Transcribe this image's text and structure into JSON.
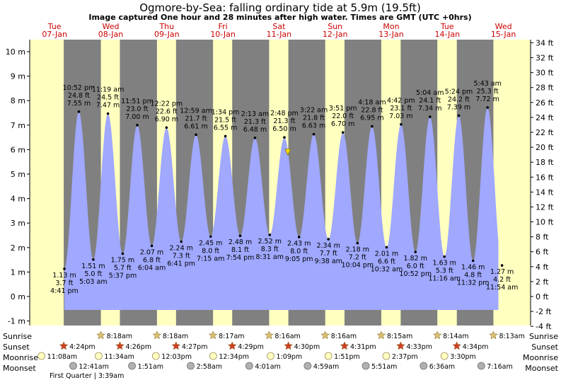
{
  "header": {
    "title": "Ogmore-by-Sea: falling  ordinary tide at 5.9m (19.5ft)",
    "subtitle": "Image captured One hour and 28 minutes after high water. Times are GMT (UTC +0hrs)"
  },
  "colors": {
    "day": "#ffffc0",
    "night": "#808080",
    "tide": "#a0a8ff",
    "sun_star": "#d8c070",
    "sunset_star": "#d04020",
    "moonrise": "#ffffc0",
    "moonset": "#b0b0b0",
    "day_label": "#cc0000",
    "marker": "#ffe000"
  },
  "chart_data": {
    "type": "area",
    "title": "Ogmore-by-Sea: falling  ordinary tide at 5.9m (19.5ft)",
    "ylabel_left": "m",
    "ylabel_right": "ft",
    "ylim_m": [
      -1.5,
      10.8
    ],
    "left_ticks": [
      "-1 m",
      "0 m",
      "1 m",
      "2 m",
      "3 m",
      "4 m",
      "5 m",
      "6 m",
      "7 m",
      "8 m",
      "9 m",
      "10 m"
    ],
    "right_ticks": [
      "-4 ft",
      "-2 ft",
      "0 ft",
      "2 ft",
      "4 ft",
      "6 ft",
      "8 ft",
      "10 ft",
      "12 ft",
      "14 ft",
      "16 ft",
      "18 ft",
      "20 ft",
      "22 ft",
      "24 ft",
      "26 ft",
      "28 ft",
      "30 ft",
      "32 ft",
      "34 ft"
    ],
    "day_labels": [
      {
        "name": "Tue",
        "date": "07-Jan"
      },
      {
        "name": "Wed",
        "date": "08-Jan"
      },
      {
        "name": "Thu",
        "date": "09-Jan"
      },
      {
        "name": "Fri",
        "date": "10-Jan"
      },
      {
        "name": "Sat",
        "date": "11-Jan"
      },
      {
        "name": "Sun",
        "date": "12-Jan"
      },
      {
        "name": "Mon",
        "date": "13-Jan"
      },
      {
        "name": "Tue",
        "date": "14-Jan"
      },
      {
        "name": "Wed",
        "date": "15-Jan"
      }
    ],
    "tides": [
      {
        "type": "low",
        "time": "4:41 pm",
        "ft": "3.7 ft",
        "m": "1.13 m",
        "day": 0,
        "hour": 16.68,
        "h": 1.13
      },
      {
        "type": "high",
        "time": "10:52 pm",
        "ft": "24.8 ft",
        "m": "7.55 m",
        "day": 0,
        "hour": 22.87,
        "h": 7.55
      },
      {
        "type": "low",
        "time": "5:03 am",
        "ft": "5.0 ft",
        "m": "1.51 m",
        "day": 1,
        "hour": 5.05,
        "h": 1.51
      },
      {
        "type": "high",
        "time": "11:19 am",
        "ft": "24.5 ft",
        "m": "7.47 m",
        "day": 1,
        "hour": 11.32,
        "h": 7.47
      },
      {
        "type": "low",
        "time": "5:37 pm",
        "ft": "5.7 ft",
        "m": "1.75 m",
        "day": 1,
        "hour": 17.62,
        "h": 1.75
      },
      {
        "type": "high",
        "time": "11:51 pm",
        "ft": "23.0 ft",
        "m": "7.00 m",
        "day": 1,
        "hour": 23.85,
        "h": 7.0
      },
      {
        "type": "low",
        "time": "6:04 am",
        "ft": "6.8 ft",
        "m": "2.07 m",
        "day": 2,
        "hour": 6.07,
        "h": 2.07
      },
      {
        "type": "high",
        "time": "12:22 pm",
        "ft": "22.6 ft",
        "m": "6.90 m",
        "day": 2,
        "hour": 12.37,
        "h": 6.9
      },
      {
        "type": "low",
        "time": "6:41 pm",
        "ft": "7.3 ft",
        "m": "2.24 m",
        "day": 2,
        "hour": 18.68,
        "h": 2.24
      },
      {
        "type": "high",
        "time": "12:59 am",
        "ft": "21.7 ft",
        "m": "6.61 m",
        "day": 3,
        "hour": 0.98,
        "h": 6.61
      },
      {
        "type": "low",
        "time": "7:15 am",
        "ft": "8.0 ft",
        "m": "2.45 m",
        "day": 3,
        "hour": 7.25,
        "h": 2.45
      },
      {
        "type": "high",
        "time": "1:34 pm",
        "ft": "21.5 ft",
        "m": "6.55 m",
        "day": 3,
        "hour": 13.57,
        "h": 6.55
      },
      {
        "type": "low",
        "time": "7:54 pm",
        "ft": "8.1 ft",
        "m": "2.48 m",
        "day": 3,
        "hour": 19.9,
        "h": 2.48
      },
      {
        "type": "high",
        "time": "2:13 am",
        "ft": "21.3 ft",
        "m": "6.48 m",
        "day": 4,
        "hour": 2.22,
        "h": 6.48
      },
      {
        "type": "low",
        "time": "8:31 am",
        "ft": "8.3 ft",
        "m": "2.52 m",
        "day": 4,
        "hour": 8.52,
        "h": 2.52
      },
      {
        "type": "high",
        "time": "2:48 pm",
        "ft": "21.3 ft",
        "m": "6.50 m",
        "day": 4,
        "hour": 14.8,
        "h": 6.5
      },
      {
        "type": "low",
        "time": "9:05 pm",
        "ft": "8.0 ft",
        "m": "2.43 m",
        "day": 4,
        "hour": 21.08,
        "h": 2.43
      },
      {
        "type": "high",
        "time": "3:22 am",
        "ft": "21.8 ft",
        "m": "6.63 m",
        "day": 5,
        "hour": 3.37,
        "h": 6.63
      },
      {
        "type": "low",
        "time": "9:38 am",
        "ft": "7.7 ft",
        "m": "2.34 m",
        "day": 5,
        "hour": 9.63,
        "h": 2.34
      },
      {
        "type": "high",
        "time": "3:51 pm",
        "ft": "22.0 ft",
        "m": "6.70 m",
        "day": 5,
        "hour": 15.85,
        "h": 6.7
      },
      {
        "type": "low",
        "time": "10:04 pm",
        "ft": "7.2 ft",
        "m": "2.18 m",
        "day": 5,
        "hour": 22.07,
        "h": 2.18
      },
      {
        "type": "high",
        "time": "4:18 am",
        "ft": "22.8 ft",
        "m": "6.95 m",
        "day": 6,
        "hour": 4.3,
        "h": 6.95
      },
      {
        "type": "low",
        "time": "10:32 am",
        "ft": "6.6 ft",
        "m": "2.01 m",
        "day": 6,
        "hour": 10.53,
        "h": 2.01
      },
      {
        "type": "high",
        "time": "4:42 pm",
        "ft": "23.1 ft",
        "m": "7.03 m",
        "day": 6,
        "hour": 16.7,
        "h": 7.03
      },
      {
        "type": "low",
        "time": "10:52 pm",
        "ft": "6.0 ft",
        "m": "1.82 m",
        "day": 6,
        "hour": 22.87,
        "h": 1.82
      },
      {
        "type": "high",
        "time": "5:04 am",
        "ft": "24.1 ft",
        "m": "7.34 m",
        "day": 7,
        "hour": 5.07,
        "h": 7.34
      },
      {
        "type": "low",
        "time": "11:16 am",
        "ft": "5.3 ft",
        "m": "1.63 m",
        "day": 7,
        "hour": 11.27,
        "h": 1.63
      },
      {
        "type": "high",
        "time": "5:24 pm",
        "ft": "24.2 ft",
        "m": "7.39 m",
        "day": 7,
        "hour": 17.4,
        "h": 7.39
      },
      {
        "type": "low",
        "time": "11:32 pm",
        "ft": "4.8 ft",
        "m": "1.46 m",
        "day": 7,
        "hour": 23.53,
        "h": 1.46
      },
      {
        "type": "high",
        "time": "5:43 am",
        "ft": "25.3 ft",
        "m": "7.72 m",
        "day": 8,
        "hour": 5.72,
        "h": 7.72
      },
      {
        "type": "low",
        "time": "11:54 am",
        "ft": "4.2 ft",
        "m": "1.27 m",
        "day": 8,
        "hour": 11.9,
        "h": 1.27
      }
    ],
    "current": {
      "level_m": 5.9,
      "day": 4,
      "hour": 16.27
    },
    "sun": {
      "sunrise": [
        null,
        "8:18am",
        "8:18am",
        "8:17am",
        "8:16am",
        "8:16am",
        "8:15am",
        "8:14am",
        "8:13am"
      ],
      "sunset": [
        "4:24pm",
        "4:26pm",
        "4:27pm",
        "4:29pm",
        "4:30pm",
        "4:31pm",
        "4:33pm",
        "4:34pm",
        null
      ],
      "sunrise_hours": [
        null,
        8.3,
        8.3,
        8.28,
        8.27,
        8.27,
        8.25,
        8.23,
        8.22
      ],
      "sunset_hours": [
        16.4,
        16.43,
        16.45,
        16.48,
        16.5,
        16.52,
        16.55,
        16.57,
        null
      ]
    },
    "moon": {
      "moonrise": [
        "11:08am",
        "11:34am",
        "12:03pm",
        "12:34pm",
        "1:09pm",
        "1:51pm",
        "2:37pm",
        "3:30pm"
      ],
      "moonrise_hours": [
        11.13,
        11.57,
        12.05,
        12.57,
        13.15,
        13.85,
        14.62,
        15.5
      ],
      "moonset": [
        "12:41am",
        "1:51am",
        "2:58am",
        "4:01am",
        "4:59am",
        "5:51am",
        "6:36am",
        "7:16am"
      ],
      "moonset_hours": [
        0.68,
        1.85,
        2.97,
        4.02,
        4.98,
        5.85,
        6.6,
        7.27
      ],
      "moonset_days": [
        1,
        2,
        3,
        4,
        5,
        6,
        7,
        8
      ],
      "phase_note": "First Quarter | 3:39am"
    },
    "row_labels": {
      "sunrise": "Sunrise",
      "sunset": "Sunset",
      "moonrise": "Moonrise",
      "moonset": "Moonset"
    }
  }
}
